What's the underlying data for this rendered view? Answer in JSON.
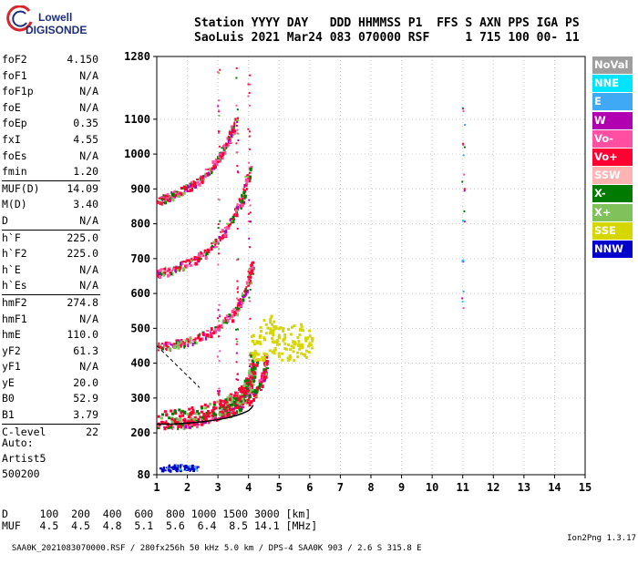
{
  "logo": {
    "line1": "Lowell",
    "line2": "DIGISONDE"
  },
  "header": {
    "line1": "Station YYYY DAY   DDD HHMMSS P1  FFS S AXN PPS IGA PS",
    "line2": "SaoLuis 2021 Mar24 083 070000 RSF     1 715 100 00- 11"
  },
  "params": [
    {
      "name": "foF2",
      "value": "4.150"
    },
    {
      "name": "foF1",
      "value": "N/A"
    },
    {
      "name": "foF1p",
      "value": "N/A"
    },
    {
      "name": "foE",
      "value": "N/A"
    },
    {
      "name": "foEp",
      "value": "0.35"
    },
    {
      "name": "fxI",
      "value": "4.55"
    },
    {
      "name": "foEs",
      "value": "N/A"
    },
    {
      "name": "fmin",
      "value": "1.20"
    },
    {
      "name": "MUF(D)",
      "value": "14.09"
    },
    {
      "name": "M(D)",
      "value": "3.40"
    },
    {
      "name": "D",
      "value": "N/A"
    },
    {
      "name": "h`F",
      "value": "225.0"
    },
    {
      "name": "h`F2",
      "value": "225.0"
    },
    {
      "name": "h`E",
      "value": "N/A"
    },
    {
      "name": "h`Es",
      "value": "N/A"
    },
    {
      "name": "hmF2",
      "value": "274.8"
    },
    {
      "name": "hmF1",
      "value": "N/A"
    },
    {
      "name": "hmE",
      "value": "110.0"
    },
    {
      "name": "yF2",
      "value": "61.3"
    },
    {
      "name": "yF1",
      "value": "N/A"
    },
    {
      "name": "yE",
      "value": "20.0"
    },
    {
      "name": "B0",
      "value": "52.9"
    },
    {
      "name": "B1",
      "value": "3.79"
    },
    {
      "name": "C-level",
      "value": "22"
    }
  ],
  "auto": {
    "line1": "Auto:",
    "line2": "Artist5",
    "line3": "500200"
  },
  "legend": [
    {
      "label": "NoVal",
      "color": "#9e9e9e"
    },
    {
      "label": "NNE",
      "color": "#00e5ff"
    },
    {
      "label": "E",
      "color": "#3fa9f5"
    },
    {
      "label": "W",
      "color": "#b000b0"
    },
    {
      "label": "Vo-",
      "color": "#ff4fa3"
    },
    {
      "label": "Vo+",
      "color": "#ff0033"
    },
    {
      "label": "SSW",
      "color": "#ffb3b3"
    },
    {
      "label": "X-",
      "color": "#007a00"
    },
    {
      "label": "X+",
      "color": "#7fc15a"
    },
    {
      "label": "SSE",
      "color": "#d6d600"
    },
    {
      "label": "NNW",
      "color": "#0000cc"
    }
  ],
  "dtable": {
    "row1": "D     100  200  400  600  800 1000 1500 3000 [km]",
    "row2": "MUF   4.5  4.5  4.8  5.1  5.6  6.4  8.5 14.1 [MHz]"
  },
  "footer": {
    "left": "SAA0K_2021083070000.RSF / 280fx256h 50 kHz 5.0 km / DPS-4 SAA0K 903 / 2.6 S 315.8 E",
    "right": "Ion2Png 1.3.17"
  },
  "chart_data": {
    "type": "scatter",
    "x_ticks": [
      "1",
      "2",
      "3",
      "4",
      "5",
      "6",
      "7",
      "8",
      "9",
      "10",
      "11",
      "12",
      "13",
      "14",
      "15"
    ],
    "y_ticks": [
      "80",
      "200",
      "300",
      "400",
      "500",
      "600",
      "700",
      "800",
      "900",
      "1000",
      "1100",
      "1280"
    ],
    "xlim": [
      1,
      15
    ],
    "ylim": [
      80,
      1280
    ],
    "grid": true,
    "profile_curve": {
      "x": [
        1.0,
        1.5,
        2.0,
        2.5,
        3.0,
        3.3,
        3.6,
        3.8,
        4.0,
        4.1,
        4.15
      ],
      "y": [
        225,
        225,
        228,
        232,
        238,
        243,
        250,
        256,
        264,
        272,
        280
      ]
    },
    "traces": [
      {
        "name": "F2 O-trace",
        "x": [
          1.0,
          1.5,
          2.0,
          2.5,
          3.0,
          3.3,
          3.6,
          3.8,
          4.0,
          4.1,
          4.15
        ],
        "y": [
          225,
          228,
          234,
          242,
          255,
          266,
          284,
          300,
          330,
          360,
          400
        ]
      },
      {
        "name": "F2 X-trace",
        "x": [
          1.7,
          2.2,
          2.7,
          3.2,
          3.6,
          3.9,
          4.2,
          4.4,
          4.5,
          4.55
        ],
        "y": [
          225,
          232,
          243,
          258,
          272,
          290,
          318,
          350,
          380,
          420
        ]
      },
      {
        "name": "2F trace",
        "x": [
          1.0,
          1.5,
          2.0,
          2.5,
          3.0,
          3.5,
          3.8,
          4.0,
          4.1
        ],
        "y": [
          450,
          455,
          465,
          480,
          505,
          545,
          590,
          640,
          690
        ]
      },
      {
        "name": "3F trace",
        "x": [
          1.0,
          1.5,
          2.0,
          2.5,
          3.0,
          3.5,
          3.8,
          4.0
        ],
        "y": [
          660,
          670,
          690,
          715,
          760,
          820,
          880,
          960
        ]
      },
      {
        "name": "4F trace",
        "x": [
          1.0,
          1.5,
          2.0,
          2.5,
          3.0,
          3.3,
          3.6
        ],
        "y": [
          870,
          885,
          905,
          935,
          990,
          1040,
          1100
        ]
      },
      {
        "name": "Es-like low echoes",
        "x": [
          1.1,
          1.4,
          1.7,
          2.0,
          2.3
        ],
        "y": [
          100,
          102,
          104,
          101,
          98
        ]
      }
    ],
    "sse_cluster": {
      "x": [
        4.3,
        4.6,
        4.9,
        5.2,
        5.5,
        5.8
      ],
      "y": [
        450,
        500,
        470,
        440,
        480,
        460
      ]
    },
    "scattered_column": {
      "x": [
        11.0,
        11.0,
        11.0,
        11.0,
        11.0,
        11.0
      ],
      "y": [
        1110,
        1020,
        920,
        820,
        700,
        580
      ]
    }
  }
}
